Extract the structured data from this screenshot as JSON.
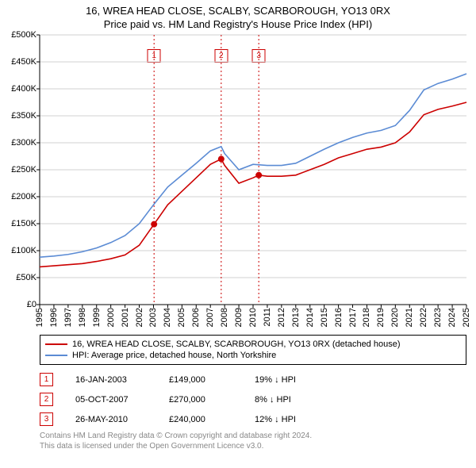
{
  "title": "16, WREA HEAD CLOSE, SCALBY, SCARBOROUGH, YO13 0RX",
  "subtitle": "Price paid vs. HM Land Registry's House Price Index (HPI)",
  "chart": {
    "type": "line",
    "background_color": "#ffffff",
    "axis_color": "#000000",
    "grid_color": "#d0d0d0",
    "x_years": [
      1995,
      1996,
      1997,
      1998,
      1999,
      2000,
      2001,
      2002,
      2003,
      2004,
      2005,
      2006,
      2007,
      2008,
      2009,
      2010,
      2011,
      2012,
      2013,
      2014,
      2015,
      2016,
      2017,
      2018,
      2019,
      2020,
      2021,
      2022,
      2023,
      2024,
      2025
    ],
    "y_ticks": [
      0,
      50000,
      100000,
      150000,
      200000,
      250000,
      300000,
      350000,
      400000,
      450000,
      500000
    ],
    "y_tick_labels": [
      "£0",
      "£50K",
      "£100K",
      "£150K",
      "£200K",
      "£250K",
      "£300K",
      "£350K",
      "£400K",
      "£450K",
      "£500K"
    ],
    "ylim": [
      0,
      500000
    ],
    "series": [
      {
        "name": "property",
        "color": "#cc0000",
        "width": 1.6,
        "points": [
          [
            1995,
            70000
          ],
          [
            1996,
            72000
          ],
          [
            1997,
            74000
          ],
          [
            1998,
            76000
          ],
          [
            1999,
            80000
          ],
          [
            2000,
            85000
          ],
          [
            2001,
            92000
          ],
          [
            2002,
            110000
          ],
          [
            2003.04,
            149000
          ],
          [
            2004,
            185000
          ],
          [
            2005,
            210000
          ],
          [
            2006,
            235000
          ],
          [
            2007,
            260000
          ],
          [
            2007.76,
            270000
          ],
          [
            2008,
            258000
          ],
          [
            2009,
            225000
          ],
          [
            2010,
            235000
          ],
          [
            2010.4,
            240000
          ],
          [
            2011,
            238000
          ],
          [
            2012,
            238000
          ],
          [
            2013,
            240000
          ],
          [
            2014,
            250000
          ],
          [
            2015,
            260000
          ],
          [
            2016,
            272000
          ],
          [
            2017,
            280000
          ],
          [
            2018,
            288000
          ],
          [
            2019,
            292000
          ],
          [
            2020,
            300000
          ],
          [
            2021,
            320000
          ],
          [
            2022,
            352000
          ],
          [
            2023,
            362000
          ],
          [
            2024,
            368000
          ],
          [
            2025,
            375000
          ]
        ]
      },
      {
        "name": "hpi",
        "color": "#5b8bd4",
        "width": 1.6,
        "points": [
          [
            1995,
            88000
          ],
          [
            1996,
            90000
          ],
          [
            1997,
            93000
          ],
          [
            1998,
            98000
          ],
          [
            1999,
            105000
          ],
          [
            2000,
            115000
          ],
          [
            2001,
            128000
          ],
          [
            2002,
            150000
          ],
          [
            2003,
            185000
          ],
          [
            2004,
            218000
          ],
          [
            2005,
            240000
          ],
          [
            2006,
            262000
          ],
          [
            2007,
            285000
          ],
          [
            2007.76,
            293000
          ],
          [
            2008,
            280000
          ],
          [
            2009,
            250000
          ],
          [
            2010,
            260000
          ],
          [
            2011,
            258000
          ],
          [
            2012,
            258000
          ],
          [
            2013,
            262000
          ],
          [
            2014,
            275000
          ],
          [
            2015,
            288000
          ],
          [
            2016,
            300000
          ],
          [
            2017,
            310000
          ],
          [
            2018,
            318000
          ],
          [
            2019,
            323000
          ],
          [
            2020,
            332000
          ],
          [
            2021,
            360000
          ],
          [
            2022,
            398000
          ],
          [
            2023,
            410000
          ],
          [
            2024,
            418000
          ],
          [
            2025,
            428000
          ]
        ]
      }
    ],
    "transaction_markers": [
      {
        "n": "1",
        "year": 2003.04,
        "value": 149000
      },
      {
        "n": "2",
        "year": 2007.76,
        "value": 270000
      },
      {
        "n": "3",
        "year": 2010.4,
        "value": 240000
      }
    ],
    "marker_color": "#cc0000",
    "tick_fontsize": 11
  },
  "legend": {
    "items": [
      {
        "color": "#cc0000",
        "label": "16, WREA HEAD CLOSE, SCALBY, SCARBOROUGH, YO13 0RX (detached house)"
      },
      {
        "color": "#5b8bd4",
        "label": "HPI: Average price, detached house, North Yorkshire"
      }
    ]
  },
  "transactions": [
    {
      "n": "1",
      "date": "16-JAN-2003",
      "price": "£149,000",
      "hpi": "19% ↓ HPI"
    },
    {
      "n": "2",
      "date": "05-OCT-2007",
      "price": "£270,000",
      "hpi": "8% ↓ HPI"
    },
    {
      "n": "3",
      "date": "26-MAY-2010",
      "price": "£240,000",
      "hpi": "12% ↓ HPI"
    }
  ],
  "footer": {
    "line1": "Contains HM Land Registry data © Crown copyright and database right 2024.",
    "line2": "This data is licensed under the Open Government Licence v3.0."
  }
}
